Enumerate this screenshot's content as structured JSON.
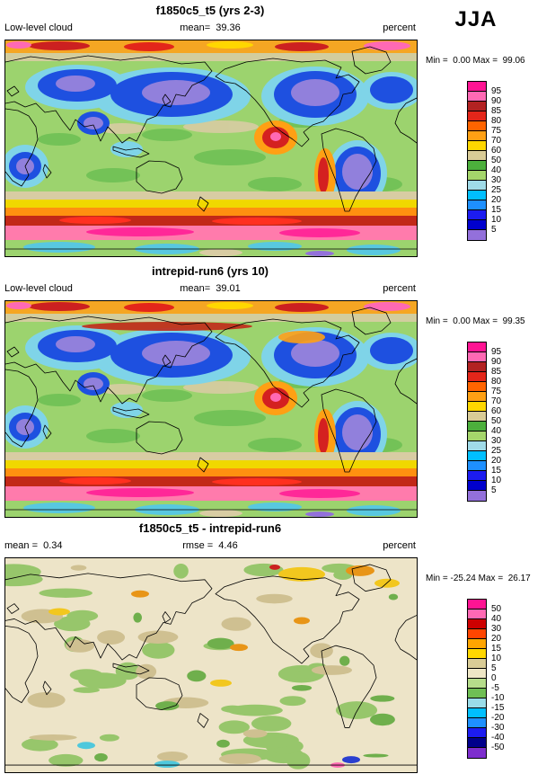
{
  "season": "JJA",
  "panels": [
    {
      "title": "f1850c5_t5 (yrs 2-3)",
      "left_text": "Low-level cloud",
      "center_text": "mean=  39.36",
      "right_text": "percent",
      "minmax": "Min =  0.00 Max =  99.06",
      "colorbar": {
        "labels": [
          "95",
          "90",
          "85",
          "80",
          "75",
          "70",
          "60",
          "50",
          "40",
          "30",
          "25",
          "20",
          "15",
          "10",
          "5"
        ],
        "colors_top_to_bottom": [
          "#FF1493",
          "#FF69B4",
          "#B22222",
          "#E3261A",
          "#FF6400",
          "#FFA014",
          "#FFD700",
          "#D9CC96",
          "#4CAF3C",
          "#A5D66B",
          "#A0DBE8",
          "#00BFFF",
          "#1E90FF",
          "#1C1CF0",
          "#0000CD",
          "#9370DB"
        ]
      }
    },
    {
      "title": "intrepid-run6 (yrs 10)",
      "left_text": "Low-level cloud",
      "center_text": "mean=  39.01",
      "right_text": "percent",
      "minmax": "Min =  0.00 Max =  99.35",
      "colorbar": {
        "labels": [
          "95",
          "90",
          "85",
          "80",
          "75",
          "70",
          "60",
          "50",
          "40",
          "30",
          "25",
          "20",
          "15",
          "10",
          "5"
        ],
        "colors_top_to_bottom": [
          "#FF1493",
          "#FF69B4",
          "#B22222",
          "#E3261A",
          "#FF6400",
          "#FFA014",
          "#FFD700",
          "#D9CC96",
          "#4CAF3C",
          "#A5D66B",
          "#A0DBE8",
          "#00BFFF",
          "#1E90FF",
          "#1C1CF0",
          "#0000CD",
          "#9370DB"
        ]
      }
    },
    {
      "title": "f1850c5_t5 - intrepid-run6",
      "left_text": "mean =  0.34",
      "center_text": "rmse =  4.46",
      "right_text": "percent",
      "minmax": "Min = -25.24 Max =  26.17",
      "colorbar": {
        "labels": [
          "50",
          "40",
          "30",
          "20",
          "15",
          "10",
          "5",
          "0",
          "-5",
          "-10",
          "-15",
          "-20",
          "-30",
          "-40",
          "-50"
        ],
        "colors_top_to_bottom": [
          "#FF1493",
          "#FF69B4",
          "#CD0000",
          "#FF4500",
          "#FFA500",
          "#FFD700",
          "#D9CC96",
          "#EFE7C6",
          "#B6DD8B",
          "#6FBF54",
          "#9ADCE8",
          "#00BFFF",
          "#1E90FF",
          "#1C1CF0",
          "#00008B",
          "#7D2ECD"
        ]
      }
    }
  ],
  "chart_data": [
    {
      "type": "heatmap",
      "title": "f1850c5_t5 (yrs 2-3)",
      "variable": "Low-level cloud",
      "season": "JJA",
      "units": "percent",
      "mean": 39.36,
      "min": 0.0,
      "max": 99.06,
      "contour_levels": [
        5,
        10,
        15,
        20,
        25,
        30,
        40,
        50,
        60,
        70,
        75,
        80,
        85,
        90,
        95
      ],
      "domain": "global lat-lon map",
      "legend_position": "right"
    },
    {
      "type": "heatmap",
      "title": "intrepid-run6 (yrs 10)",
      "variable": "Low-level cloud",
      "season": "JJA",
      "units": "percent",
      "mean": 39.01,
      "min": 0.0,
      "max": 99.35,
      "contour_levels": [
        5,
        10,
        15,
        20,
        25,
        30,
        40,
        50,
        60,
        70,
        75,
        80,
        85,
        90,
        95
      ],
      "domain": "global lat-lon map",
      "legend_position": "right"
    },
    {
      "type": "heatmap",
      "title": "f1850c5_t5 - intrepid-run6",
      "variable": "Low-level cloud difference",
      "season": "JJA",
      "units": "percent",
      "mean": 0.34,
      "rmse": 4.46,
      "min": -25.24,
      "max": 26.17,
      "contour_levels": [
        -50,
        -40,
        -30,
        -20,
        -15,
        -10,
        -5,
        0,
        5,
        10,
        15,
        20,
        30,
        40,
        50
      ],
      "domain": "global lat-lon map",
      "legend_position": "right"
    }
  ]
}
